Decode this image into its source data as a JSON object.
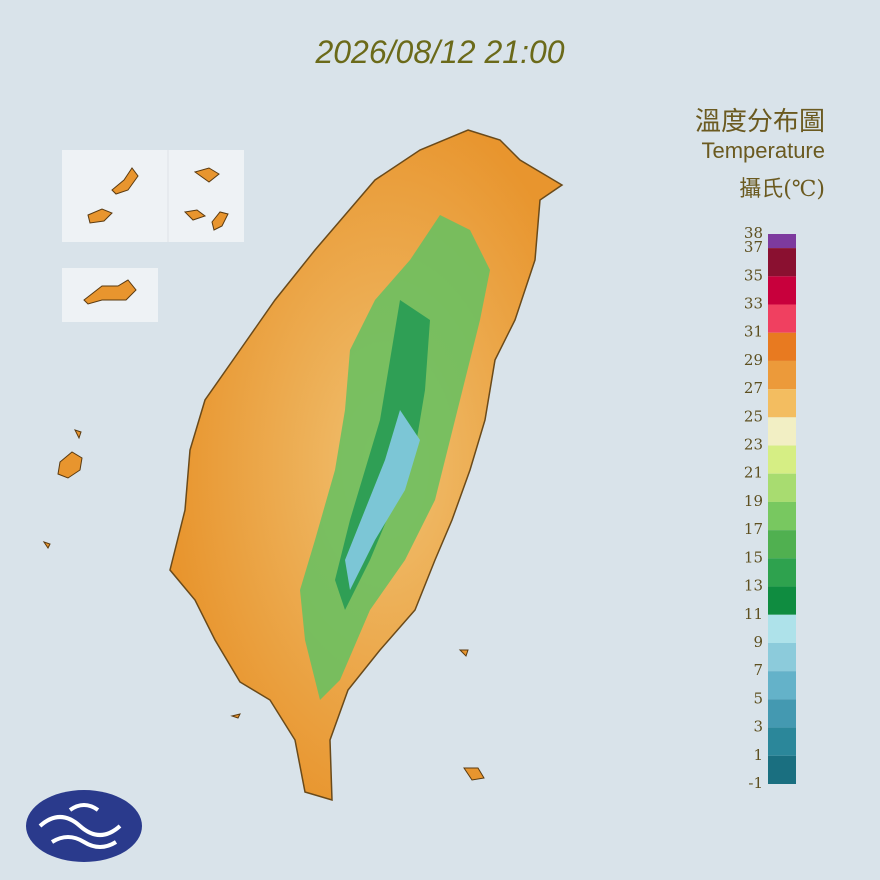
{
  "header": {
    "timestamp": "2026/08/12 21:00"
  },
  "legend": {
    "title": "溫度分布圖",
    "subtitle": "Temperature",
    "unit": "攝氏(℃)",
    "ticks": [
      38,
      37,
      35,
      33,
      31,
      29,
      27,
      25,
      23,
      21,
      19,
      17,
      15,
      13,
      11,
      9,
      7,
      5,
      3,
      1,
      -1
    ],
    "colors": [
      "#7d3a9e",
      "#8a1030",
      "#c8003c",
      "#f04060",
      "#e87a20",
      "#ec9a3a",
      "#f3bd60",
      "#f2efc4",
      "#d6ee84",
      "#a8dc70",
      "#78c860",
      "#50b050",
      "#2ea24e",
      "#0f8c40",
      "#aee2ea",
      "#8ccbdb",
      "#64b2c9",
      "#4499b1",
      "#2b879a",
      "#1a6f80"
    ]
  }
}
